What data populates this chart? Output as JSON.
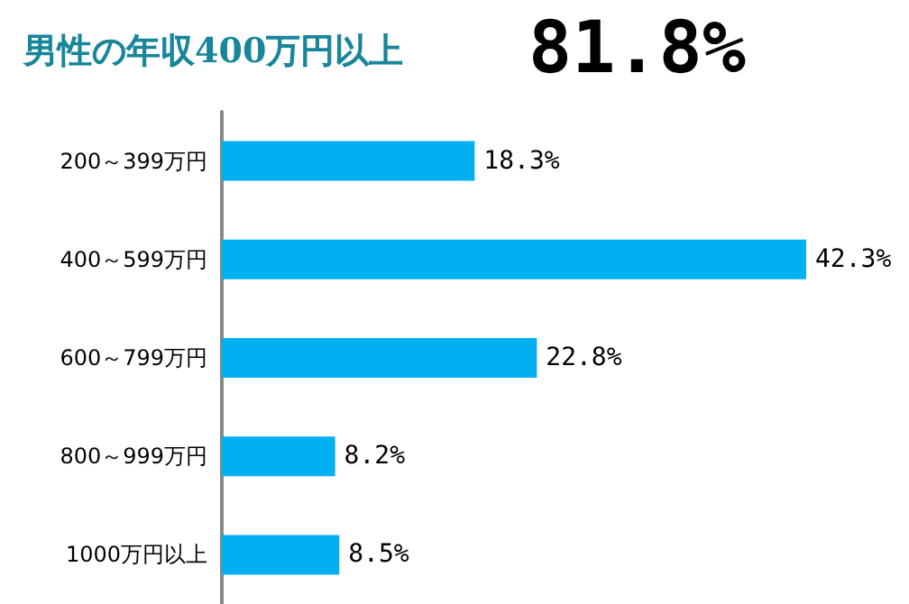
{
  "chart_data": {
    "type": "bar",
    "orientation": "horizontal",
    "title": "男性の年収400万円以上",
    "subtitle": "81.8%",
    "categories": [
      "200～399万円",
      "400～599万円",
      "600～799万円",
      "800～999万円",
      "1000万円以上"
    ],
    "values": [
      18.3,
      42.3,
      22.8,
      8.2,
      8.5
    ],
    "value_labels": [
      "18.3%",
      "42.3%",
      "22.8%",
      "8.2%",
      "8.5%"
    ],
    "color": "#00b0f0"
  }
}
